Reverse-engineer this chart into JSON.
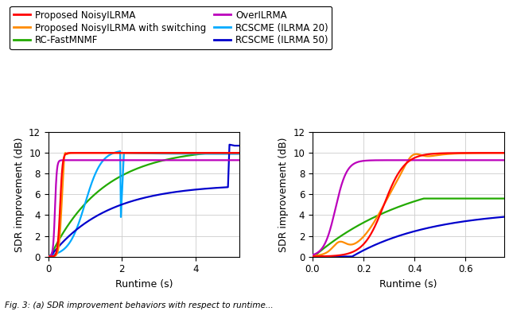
{
  "legend_entries": [
    {
      "label": "Proposed NoisyILRMA",
      "color": "#ff0000"
    },
    {
      "label": "Proposed NoisyILRMA with switching",
      "color": "#ff8c00"
    },
    {
      "label": "RC-FastMNMF",
      "color": "#22aa00"
    },
    {
      "label": "OverILRMA",
      "color": "#bb00bb"
    },
    {
      "label": "RCSCME (ILRMA 20)",
      "color": "#00aaff"
    },
    {
      "label": "RCSCME (ILRMA 50)",
      "color": "#0000cc"
    }
  ],
  "xlabel": "Runtime (s)",
  "ylabel": "SDR improvement (dB)",
  "ylim": [
    0,
    12
  ],
  "yticks": [
    0,
    2,
    4,
    6,
    8,
    10,
    12
  ],
  "left_xlim": [
    0,
    5.2
  ],
  "left_xticks": [
    0,
    2,
    4
  ],
  "right_xlim": [
    0,
    0.75
  ],
  "right_xticks": [
    0,
    0.2,
    0.4,
    0.6
  ],
  "axis_fontsize": 9,
  "tick_fontsize": 8.5,
  "legend_fontsize": 8.5,
  "linewidth": 1.6,
  "background_color": "#ffffff",
  "grid_color": "#cccccc"
}
